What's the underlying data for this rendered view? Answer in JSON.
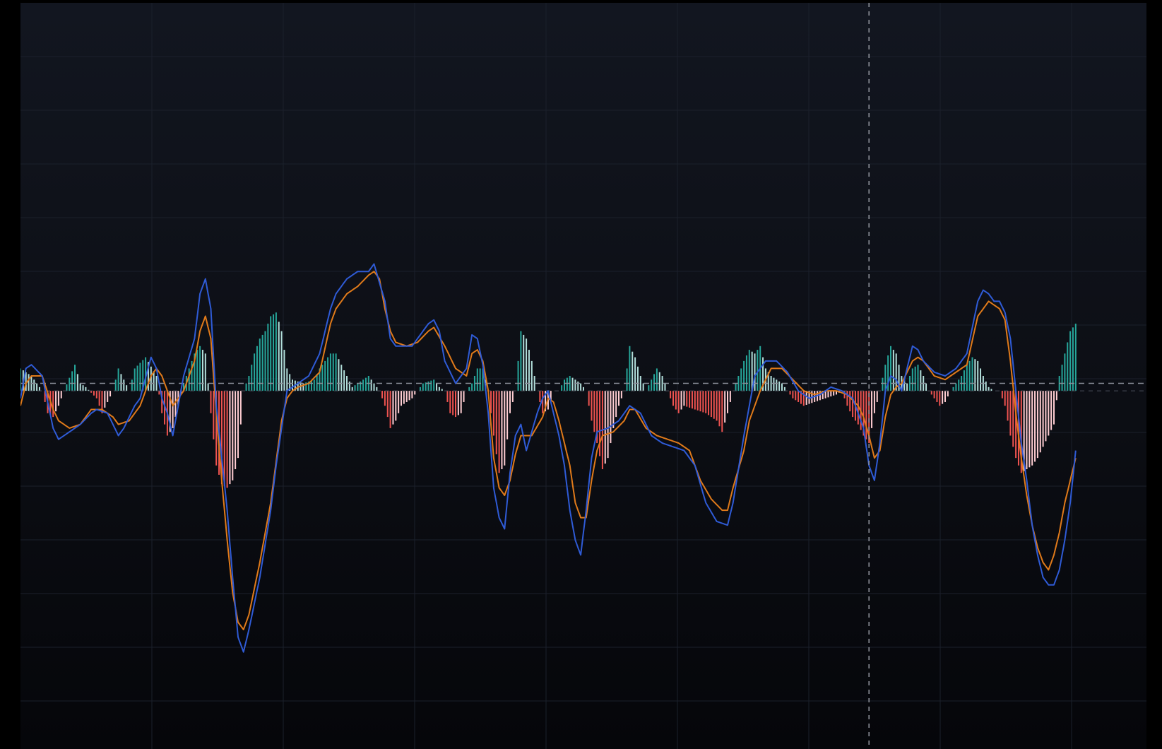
{
  "chart_data": {
    "type": "line",
    "title": "",
    "xlabel": "",
    "ylabel": "",
    "x_range": [
      0,
      200
    ],
    "ylim": [
      -4.8,
      5.2
    ],
    "grid": true,
    "zero_line": true,
    "ref_line_value": 0.1,
    "crosshair_x": 156,
    "colors": {
      "background": "#0d1017",
      "grid": "#1b202b",
      "macd": "#2f5bd6",
      "signal": "#e07a1a",
      "hist_up_strong": "#26a69a",
      "hist_up_weak": "#b2dfdb",
      "hist_down_strong": "#ef5350",
      "hist_down_weak": "#ffcdd2",
      "crosshair": "#9598a1"
    },
    "macd_keypoints": [
      [
        0,
        -0.1
      ],
      [
        1,
        0.3
      ],
      [
        2,
        0.35
      ],
      [
        4,
        0.2
      ],
      [
        6,
        -0.5
      ],
      [
        7,
        -0.65
      ],
      [
        9,
        -0.55
      ],
      [
        11,
        -0.45
      ],
      [
        13,
        -0.3
      ],
      [
        14,
        -0.25
      ],
      [
        16,
        -0.3
      ],
      [
        17,
        -0.45
      ],
      [
        18,
        -0.6
      ],
      [
        19,
        -0.5
      ],
      [
        21,
        -0.2
      ],
      [
        22,
        -0.1
      ],
      [
        24,
        0.45
      ],
      [
        25,
        0.3
      ],
      [
        26,
        -0.1
      ],
      [
        27,
        -0.3
      ],
      [
        28,
        -0.6
      ],
      [
        30,
        0.2
      ],
      [
        32,
        0.7
      ],
      [
        33,
        1.3
      ],
      [
        34,
        1.5
      ],
      [
        35,
        1.1
      ],
      [
        36,
        -0.2
      ],
      [
        37,
        -0.9
      ],
      [
        38,
        -1.6
      ],
      [
        39,
        -2.5
      ],
      [
        40,
        -3.3
      ],
      [
        41,
        -3.5
      ],
      [
        42,
        -3.2
      ],
      [
        44,
        -2.5
      ],
      [
        46,
        -1.6
      ],
      [
        47,
        -1.0
      ],
      [
        48,
        -0.5
      ],
      [
        49,
        0.0
      ],
      [
        50,
        0.05
      ],
      [
        51,
        0.1
      ],
      [
        53,
        0.2
      ],
      [
        55,
        0.5
      ],
      [
        57,
        1.1
      ],
      [
        58,
        1.3
      ],
      [
        60,
        1.5
      ],
      [
        62,
        1.6
      ],
      [
        64,
        1.6
      ],
      [
        65,
        1.7
      ],
      [
        67,
        1.2
      ],
      [
        68,
        0.7
      ],
      [
        69,
        0.6
      ],
      [
        70,
        0.6
      ],
      [
        72,
        0.6
      ],
      [
        74,
        0.8
      ],
      [
        75,
        0.9
      ],
      [
        76,
        0.95
      ],
      [
        77,
        0.8
      ],
      [
        78,
        0.4
      ],
      [
        79,
        0.25
      ],
      [
        80,
        0.1
      ],
      [
        82,
        0.3
      ],
      [
        83,
        0.75
      ],
      [
        84,
        0.7
      ],
      [
        85,
        0.35
      ],
      [
        86,
        -0.3
      ],
      [
        87,
        -1.3
      ],
      [
        88,
        -1.7
      ],
      [
        89,
        -1.85
      ],
      [
        90,
        -1.1
      ],
      [
        91,
        -0.6
      ],
      [
        92,
        -0.45
      ],
      [
        93,
        -0.8
      ],
      [
        94,
        -0.55
      ],
      [
        95,
        -0.3
      ],
      [
        96,
        -0.1
      ],
      [
        97,
        0.0
      ],
      [
        98,
        -0.3
      ],
      [
        99,
        -0.6
      ],
      [
        100,
        -1.0
      ],
      [
        101,
        -1.6
      ],
      [
        102,
        -2.0
      ],
      [
        103,
        -2.2
      ],
      [
        104,
        -1.6
      ],
      [
        105,
        -0.9
      ],
      [
        106,
        -0.55
      ],
      [
        108,
        -0.5
      ],
      [
        110,
        -0.4
      ],
      [
        112,
        -0.2
      ],
      [
        114,
        -0.3
      ],
      [
        116,
        -0.6
      ],
      [
        118,
        -0.7
      ],
      [
        120,
        -0.75
      ],
      [
        122,
        -0.8
      ],
      [
        124,
        -1.0
      ],
      [
        126,
        -1.5
      ],
      [
        128,
        -1.75
      ],
      [
        130,
        -1.8
      ],
      [
        131,
        -1.5
      ],
      [
        133,
        -0.6
      ],
      [
        134,
        -0.2
      ],
      [
        135,
        0.2
      ],
      [
        137,
        0.4
      ],
      [
        139,
        0.4
      ],
      [
        141,
        0.25
      ],
      [
        143,
        0.0
      ],
      [
        145,
        -0.1
      ],
      [
        147,
        -0.05
      ],
      [
        149,
        0.05
      ],
      [
        151,
        0.0
      ],
      [
        153,
        -0.1
      ],
      [
        154,
        -0.3
      ],
      [
        155,
        -0.5
      ],
      [
        156,
        -1.0
      ],
      [
        157,
        -1.2
      ],
      [
        158,
        -0.7
      ],
      [
        159,
        0.0
      ],
      [
        160,
        0.2
      ],
      [
        161,
        0.15
      ],
      [
        162,
        0.0
      ],
      [
        163,
        0.3
      ],
      [
        164,
        0.6
      ],
      [
        165,
        0.55
      ],
      [
        166,
        0.4
      ],
      [
        168,
        0.25
      ],
      [
        170,
        0.2
      ],
      [
        172,
        0.3
      ],
      [
        174,
        0.5
      ],
      [
        176,
        1.2
      ],
      [
        177,
        1.35
      ],
      [
        178,
        1.3
      ],
      [
        179,
        1.2
      ],
      [
        180,
        1.2
      ],
      [
        181,
        1.05
      ],
      [
        182,
        0.7
      ],
      [
        183,
        0.0
      ],
      [
        184,
        -0.7
      ],
      [
        185,
        -1.2
      ],
      [
        186,
        -1.8
      ],
      [
        187,
        -2.2
      ],
      [
        188,
        -2.5
      ],
      [
        189,
        -2.6
      ],
      [
        190,
        -2.6
      ],
      [
        191,
        -2.4
      ],
      [
        192,
        -2.0
      ],
      [
        193,
        -1.5
      ],
      [
        194,
        -0.8
      ]
    ],
    "signal_keypoints": [
      [
        0,
        -0.2
      ],
      [
        1,
        0.1
      ],
      [
        2,
        0.2
      ],
      [
        4,
        0.2
      ],
      [
        6,
        -0.25
      ],
      [
        7,
        -0.4
      ],
      [
        9,
        -0.5
      ],
      [
        11,
        -0.45
      ],
      [
        13,
        -0.25
      ],
      [
        15,
        -0.25
      ],
      [
        17,
        -0.35
      ],
      [
        18,
        -0.45
      ],
      [
        20,
        -0.4
      ],
      [
        22,
        -0.2
      ],
      [
        24,
        0.2
      ],
      [
        25,
        0.3
      ],
      [
        26,
        0.2
      ],
      [
        27,
        0.0
      ],
      [
        28,
        -0.2
      ],
      [
        30,
        0.0
      ],
      [
        32,
        0.4
      ],
      [
        33,
        0.8
      ],
      [
        34,
        1.0
      ],
      [
        35,
        0.7
      ],
      [
        36,
        -0.3
      ],
      [
        37,
        -1.2
      ],
      [
        38,
        -2.0
      ],
      [
        39,
        -2.7
      ],
      [
        40,
        -3.1
      ],
      [
        41,
        -3.2
      ],
      [
        42,
        -3.0
      ],
      [
        44,
        -2.3
      ],
      [
        46,
        -1.5
      ],
      [
        48,
        -0.4
      ],
      [
        49,
        -0.1
      ],
      [
        50,
        0.0
      ],
      [
        51,
        0.05
      ],
      [
        53,
        0.1
      ],
      [
        55,
        0.25
      ],
      [
        57,
        0.9
      ],
      [
        58,
        1.1
      ],
      [
        60,
        1.3
      ],
      [
        62,
        1.4
      ],
      [
        64,
        1.55
      ],
      [
        65,
        1.6
      ],
      [
        66,
        1.5
      ],
      [
        67,
        1.1
      ],
      [
        68,
        0.8
      ],
      [
        69,
        0.65
      ],
      [
        71,
        0.6
      ],
      [
        73,
        0.65
      ],
      [
        75,
        0.8
      ],
      [
        76,
        0.85
      ],
      [
        78,
        0.6
      ],
      [
        80,
        0.3
      ],
      [
        82,
        0.2
      ],
      [
        83,
        0.5
      ],
      [
        84,
        0.55
      ],
      [
        85,
        0.4
      ],
      [
        86,
        0.0
      ],
      [
        87,
        -0.9
      ],
      [
        88,
        -1.3
      ],
      [
        89,
        -1.4
      ],
      [
        90,
        -1.2
      ],
      [
        91,
        -0.85
      ],
      [
        92,
        -0.6
      ],
      [
        94,
        -0.6
      ],
      [
        96,
        -0.35
      ],
      [
        97,
        -0.1
      ],
      [
        98,
        -0.15
      ],
      [
        99,
        -0.4
      ],
      [
        101,
        -1.0
      ],
      [
        102,
        -1.5
      ],
      [
        103,
        -1.7
      ],
      [
        104,
        -1.7
      ],
      [
        105,
        -1.2
      ],
      [
        106,
        -0.8
      ],
      [
        107,
        -0.6
      ],
      [
        109,
        -0.55
      ],
      [
        111,
        -0.4
      ],
      [
        112,
        -0.25
      ],
      [
        113,
        -0.25
      ],
      [
        115,
        -0.5
      ],
      [
        117,
        -0.6
      ],
      [
        119,
        -0.65
      ],
      [
        121,
        -0.7
      ],
      [
        123,
        -0.8
      ],
      [
        125,
        -1.2
      ],
      [
        127,
        -1.45
      ],
      [
        129,
        -1.6
      ],
      [
        130,
        -1.6
      ],
      [
        131,
        -1.3
      ],
      [
        133,
        -0.8
      ],
      [
        134,
        -0.4
      ],
      [
        136,
        0.0
      ],
      [
        138,
        0.3
      ],
      [
        140,
        0.3
      ],
      [
        142,
        0.15
      ],
      [
        144,
        0.0
      ],
      [
        146,
        -0.05
      ],
      [
        148,
        0.0
      ],
      [
        150,
        0.0
      ],
      [
        152,
        -0.05
      ],
      [
        154,
        -0.2
      ],
      [
        155,
        -0.35
      ],
      [
        156,
        -0.6
      ],
      [
        157,
        -0.9
      ],
      [
        158,
        -0.8
      ],
      [
        159,
        -0.35
      ],
      [
        160,
        -0.05
      ],
      [
        161,
        0.05
      ],
      [
        162,
        0.1
      ],
      [
        163,
        0.25
      ],
      [
        164,
        0.4
      ],
      [
        165,
        0.45
      ],
      [
        166,
        0.4
      ],
      [
        168,
        0.2
      ],
      [
        170,
        0.15
      ],
      [
        172,
        0.25
      ],
      [
        174,
        0.35
      ],
      [
        176,
        1.0
      ],
      [
        177,
        1.1
      ],
      [
        178,
        1.2
      ],
      [
        180,
        1.1
      ],
      [
        181,
        0.95
      ],
      [
        182,
        0.4
      ],
      [
        183,
        -0.3
      ],
      [
        184,
        -0.9
      ],
      [
        185,
        -1.4
      ],
      [
        186,
        -1.8
      ],
      [
        187,
        -2.1
      ],
      [
        188,
        -2.3
      ],
      [
        189,
        -2.4
      ],
      [
        190,
        -2.2
      ],
      [
        191,
        -1.9
      ],
      [
        192,
        -1.5
      ],
      [
        193,
        -1.2
      ],
      [
        194,
        -0.9
      ]
    ],
    "histogram_keypoints": [
      [
        0,
        0.3
      ],
      [
        2,
        0.2
      ],
      [
        4,
        0.0
      ],
      [
        5,
        -0.3
      ],
      [
        6,
        -0.35
      ],
      [
        7,
        -0.2
      ],
      [
        8,
        0.0
      ],
      [
        10,
        0.35
      ],
      [
        11,
        0.1
      ],
      [
        12,
        0.05
      ],
      [
        14,
        -0.1
      ],
      [
        15,
        -0.3
      ],
      [
        16,
        -0.15
      ],
      [
        17,
        0.0
      ],
      [
        18,
        0.3
      ],
      [
        20,
        0.0
      ],
      [
        21,
        0.3
      ],
      [
        23,
        0.45
      ],
      [
        25,
        0.2
      ],
      [
        26,
        -0.3
      ],
      [
        27,
        -0.6
      ],
      [
        28,
        -0.5
      ],
      [
        29,
        -0.2
      ],
      [
        30,
        0.1
      ],
      [
        32,
        0.5
      ],
      [
        33,
        0.6
      ],
      [
        34,
        0.5
      ],
      [
        35,
        -0.3
      ],
      [
        36,
        -1.0
      ],
      [
        37,
        -1.25
      ],
      [
        38,
        -1.3
      ],
      [
        39,
        -1.2
      ],
      [
        40,
        -0.9
      ],
      [
        41,
        0.0
      ],
      [
        42,
        0.2
      ],
      [
        43,
        0.5
      ],
      [
        44,
        0.7
      ],
      [
        45,
        0.8
      ],
      [
        46,
        1.0
      ],
      [
        47,
        1.05
      ],
      [
        48,
        0.8
      ],
      [
        49,
        0.3
      ],
      [
        50,
        0.15
      ],
      [
        52,
        0.1
      ],
      [
        54,
        0.15
      ],
      [
        55,
        0.3
      ],
      [
        57,
        0.5
      ],
      [
        58,
        0.5
      ],
      [
        60,
        0.2
      ],
      [
        61,
        0.05
      ],
      [
        62,
        0.1
      ],
      [
        63,
        0.15
      ],
      [
        64,
        0.2
      ],
      [
        65,
        0.1
      ],
      [
        66,
        0.0
      ],
      [
        67,
        -0.2
      ],
      [
        68,
        -0.5
      ],
      [
        69,
        -0.4
      ],
      [
        70,
        -0.2
      ],
      [
        72,
        -0.1
      ],
      [
        73,
        0.0
      ],
      [
        74,
        0.1
      ],
      [
        76,
        0.15
      ],
      [
        77,
        0.05
      ],
      [
        78,
        0.0
      ],
      [
        79,
        -0.3
      ],
      [
        80,
        -0.35
      ],
      [
        81,
        -0.3
      ],
      [
        82,
        0.0
      ],
      [
        83,
        0.1
      ],
      [
        84,
        0.3
      ],
      [
        85,
        0.3
      ],
      [
        86,
        0.0
      ],
      [
        87,
        -0.6
      ],
      [
        88,
        -1.1
      ],
      [
        89,
        -1.0
      ],
      [
        90,
        -0.3
      ],
      [
        91,
        0.0
      ],
      [
        92,
        0.8
      ],
      [
        93,
        0.7
      ],
      [
        94,
        0.4
      ],
      [
        95,
        0.0
      ],
      [
        96,
        -0.3
      ],
      [
        97,
        -0.25
      ],
      [
        98,
        0.0
      ],
      [
        99,
        0.0
      ],
      [
        100,
        0.15
      ],
      [
        101,
        0.2
      ],
      [
        102,
        0.15
      ],
      [
        103,
        0.1
      ],
      [
        104,
        0.0
      ],
      [
        105,
        -0.4
      ],
      [
        106,
        -0.7
      ],
      [
        107,
        -1.05
      ],
      [
        108,
        -0.9
      ],
      [
        109,
        -0.5
      ],
      [
        110,
        -0.2
      ],
      [
        111,
        0.0
      ],
      [
        112,
        0.6
      ],
      [
        113,
        0.45
      ],
      [
        114,
        0.2
      ],
      [
        115,
        0.0
      ],
      [
        116,
        0.15
      ],
      [
        117,
        0.3
      ],
      [
        118,
        0.2
      ],
      [
        119,
        0.0
      ],
      [
        120,
        -0.2
      ],
      [
        121,
        -0.3
      ],
      [
        122,
        -0.2
      ],
      [
        124,
        -0.25
      ],
      [
        126,
        -0.3
      ],
      [
        128,
        -0.4
      ],
      [
        129,
        -0.55
      ],
      [
        130,
        -0.3
      ],
      [
        131,
        0.0
      ],
      [
        133,
        0.4
      ],
      [
        134,
        0.55
      ],
      [
        135,
        0.5
      ],
      [
        136,
        0.6
      ],
      [
        137,
        0.3
      ],
      [
        138,
        0.2
      ],
      [
        139,
        0.15
      ],
      [
        140,
        0.1
      ],
      [
        141,
        0.0
      ],
      [
        142,
        -0.1
      ],
      [
        144,
        -0.2
      ],
      [
        146,
        -0.15
      ],
      [
        148,
        -0.1
      ],
      [
        150,
        -0.05
      ],
      [
        151,
        0.0
      ],
      [
        152,
        -0.2
      ],
      [
        153,
        -0.35
      ],
      [
        154,
        -0.45
      ],
      [
        155,
        -0.6
      ],
      [
        156,
        -0.7
      ],
      [
        157,
        -0.3
      ],
      [
        158,
        0.0
      ],
      [
        159,
        0.35
      ],
      [
        160,
        0.6
      ],
      [
        161,
        0.5
      ],
      [
        162,
        0.2
      ],
      [
        163,
        0.1
      ],
      [
        164,
        0.3
      ],
      [
        165,
        0.35
      ],
      [
        166,
        0.2
      ],
      [
        167,
        0.0
      ],
      [
        168,
        -0.1
      ],
      [
        169,
        -0.2
      ],
      [
        170,
        -0.15
      ],
      [
        171,
        0.0
      ],
      [
        172,
        0.1
      ],
      [
        173,
        0.2
      ],
      [
        174,
        0.35
      ],
      [
        175,
        0.45
      ],
      [
        176,
        0.4
      ],
      [
        177,
        0.2
      ],
      [
        178,
        0.05
      ],
      [
        179,
        0.0
      ],
      [
        180,
        0.0
      ],
      [
        181,
        -0.2
      ],
      [
        182,
        -0.6
      ],
      [
        183,
        -0.9
      ],
      [
        184,
        -1.1
      ],
      [
        185,
        -1.05
      ],
      [
        186,
        -1.0
      ],
      [
        187,
        -0.9
      ],
      [
        188,
        -0.75
      ],
      [
        189,
        -0.6
      ],
      [
        190,
        -0.45
      ],
      [
        191,
        0.2
      ],
      [
        192,
        0.5
      ],
      [
        193,
        0.8
      ],
      [
        194,
        0.9
      ]
    ]
  }
}
